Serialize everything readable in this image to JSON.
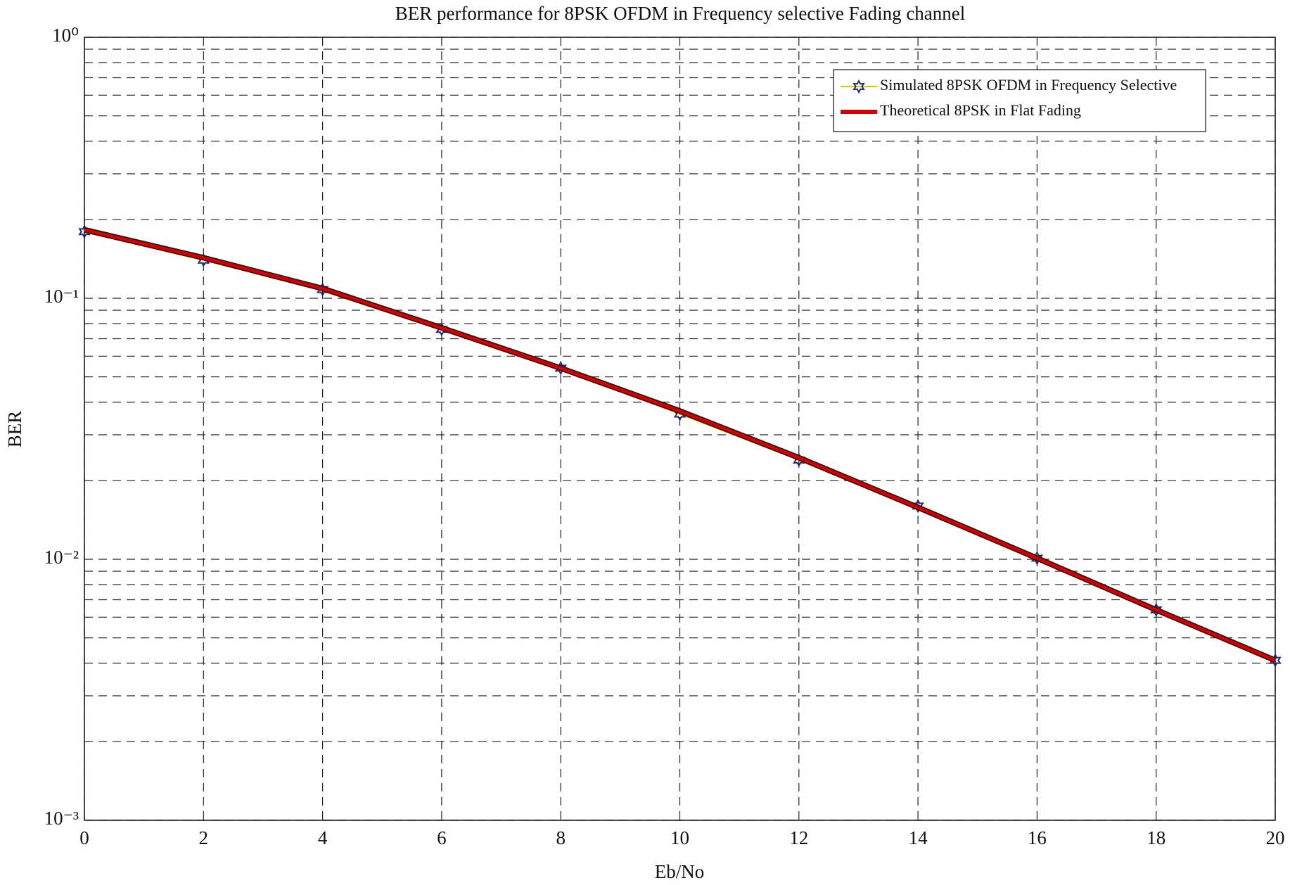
{
  "chart_data": {
    "type": "line",
    "title": "BER performance for 8PSK OFDM in Frequency selective Fading channel",
    "x_label": "Eb/No",
    "y_label": "BER",
    "x": [
      0,
      2,
      4,
      6,
      8,
      10,
      12,
      14,
      16,
      18,
      20
    ],
    "series": [
      {
        "name": "Simulated 8PSK OFDM in Frequency Selective",
        "color": "#1f2a80",
        "marker": "hexagram",
        "values": [
          0.18,
          0.14,
          0.108,
          0.076,
          0.054,
          0.036,
          0.024,
          0.016,
          0.0101,
          0.0064,
          0.0041
        ]
      },
      {
        "name": "Theoretical 8PSK in Flat Fading",
        "color": "#d40000",
        "values": [
          0.183,
          0.143,
          0.109,
          0.077,
          0.054,
          0.037,
          0.0245,
          0.0158,
          0.0101,
          0.0064,
          0.0041
        ]
      }
    ],
    "xlim": [
      0,
      20
    ],
    "xticks": [
      0,
      2,
      4,
      6,
      8,
      10,
      12,
      14,
      16,
      18,
      20
    ],
    "ylim": [
      0.001,
      1
    ],
    "y_scale": "log",
    "yticks": [
      {
        "value": 0.001,
        "label": "10⁻³"
      },
      {
        "value": 0.01,
        "label": "10⁻²"
      },
      {
        "value": 0.1,
        "label": "10⁻¹"
      },
      {
        "value": 1,
        "label": "10⁰"
      }
    ],
    "yminorticks": [
      0.002,
      0.003,
      0.004,
      0.005,
      0.006,
      0.007,
      0.008,
      0.009,
      0.02,
      0.03,
      0.04,
      0.05,
      0.06,
      0.07,
      0.08,
      0.09,
      0.2,
      0.3,
      0.4,
      0.5,
      0.6,
      0.7,
      0.8,
      0.9
    ],
    "grid": true,
    "legend": "upper right"
  }
}
